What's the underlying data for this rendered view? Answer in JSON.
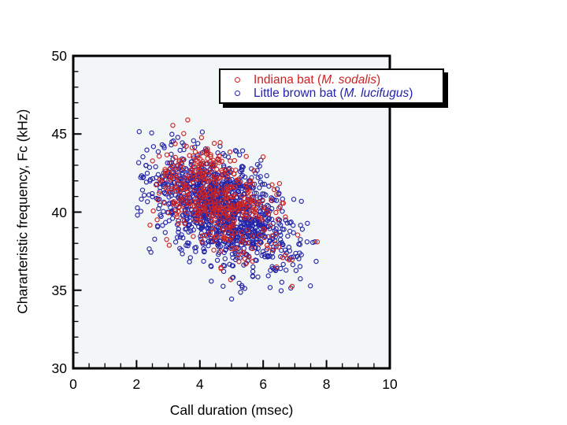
{
  "page": {
    "background": "#ffffff"
  },
  "chart_data": {
    "type": "scatter",
    "title": "",
    "xlabel": "Call duration (msec)",
    "ylabel": "Chararteristic frequency, Fc (kHz)",
    "xlim": [
      0,
      10
    ],
    "ylim": [
      30,
      50
    ],
    "x_major_ticks": [
      0,
      2,
      4,
      6,
      8,
      10
    ],
    "x_minor_step": 0.5,
    "y_major_ticks": [
      30,
      35,
      40,
      45,
      50
    ],
    "y_minor_step": 1,
    "grid": false,
    "plot_background": "#f2f6f6",
    "frame_color": "#000000",
    "tick_color": "#000000",
    "legend": {
      "position": "top-right",
      "background": "#ffffff",
      "border_color": "#000000",
      "shadow_color": "#000000",
      "entries": [
        {
          "prefix": "Indiana bat (",
          "species_italic": "M. sodalis",
          "suffix": ")",
          "color": "#cc2222",
          "marker": "open-circle"
        },
        {
          "prefix": "Little brown bat (",
          "species_italic": "M. lucifugus",
          "suffix": ")",
          "color": "#2323ad",
          "marker": "open-circle"
        }
      ]
    },
    "series": [
      {
        "name": "Little brown bat (M. lucifugus)",
        "color": "#2525a8",
        "marker": "open-circle",
        "marker_radius": 2.6,
        "n_points": 1200,
        "distribution": {
          "x_mean": 4.7,
          "y_mean": 40.15,
          "x_std": 1.15,
          "y_std": 1.9,
          "correlation": -0.52,
          "x_range": [
            2.0,
            8.65
          ],
          "y_range": [
            34.3,
            46.3
          ],
          "seed": 1234
        }
      },
      {
        "name": "Indiana bat (M. sodalis)",
        "color": "#cc2222",
        "marker": "open-circle",
        "marker_radius": 2.6,
        "n_points": 450,
        "distribution": {
          "x_mean": 4.45,
          "y_mean": 40.9,
          "x_std": 1.02,
          "y_std": 1.85,
          "correlation": -0.45,
          "x_range": [
            2.2,
            8.45
          ],
          "y_range": [
            35.0,
            46.4
          ],
          "seed": 99
        }
      }
    ]
  }
}
